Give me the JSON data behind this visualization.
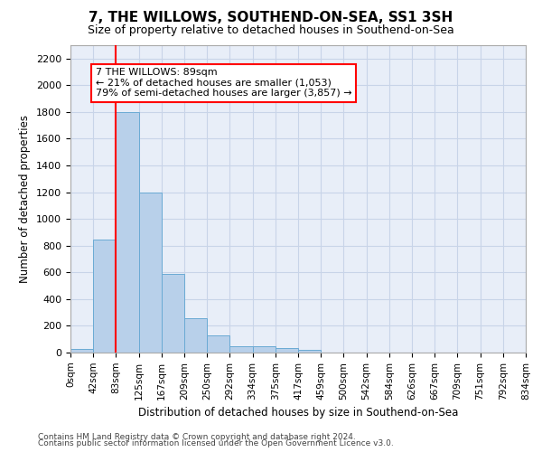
{
  "title": "7, THE WILLOWS, SOUTHEND-ON-SEA, SS1 3SH",
  "subtitle": "Size of property relative to detached houses in Southend-on-Sea",
  "xlabel": "Distribution of detached houses by size in Southend-on-Sea",
  "ylabel": "Number of detached properties",
  "bar_values": [
    25,
    845,
    1800,
    1200,
    590,
    260,
    130,
    50,
    45,
    32,
    18,
    0,
    0,
    0,
    0,
    0,
    0,
    0,
    0,
    0
  ],
  "bar_labels": [
    "0sqm",
    "42sqm",
    "83sqm",
    "125sqm",
    "167sqm",
    "209sqm",
    "250sqm",
    "292sqm",
    "334sqm",
    "375sqm",
    "417sqm",
    "459sqm",
    "500sqm",
    "542sqm",
    "584sqm",
    "626sqm",
    "667sqm",
    "709sqm",
    "751sqm",
    "792sqm",
    "834sqm"
  ],
  "bar_color": "#b8d0ea",
  "bar_edge_color": "#6aaad4",
  "grid_color": "#c8d4e8",
  "bg_color": "#e8eef8",
  "annotation_text": "7 THE WILLOWS: 89sqm\n← 21% of detached houses are smaller (1,053)\n79% of semi-detached houses are larger (3,857) →",
  "annotation_box_color": "white",
  "annotation_border_color": "red",
  "vline_color": "red",
  "ylim": [
    0,
    2300
  ],
  "yticks": [
    0,
    200,
    400,
    600,
    800,
    1000,
    1200,
    1400,
    1600,
    1800,
    2000,
    2200
  ],
  "footer1": "Contains HM Land Registry data © Crown copyright and database right 2024.",
  "footer2": "Contains public sector information licensed under the Open Government Licence v3.0.",
  "n_bars": 20,
  "vline_x_index": 2
}
